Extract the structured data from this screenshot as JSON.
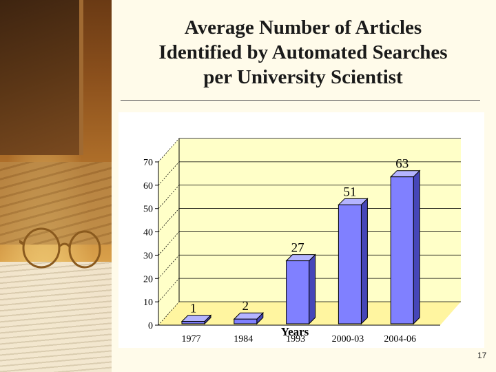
{
  "slide": {
    "title_lines": [
      "Average Number of Articles",
      "Identified by Automated Searches",
      "per University Scientist"
    ],
    "page_number": "17"
  },
  "colors": {
    "bar_front": "#8080ff",
    "bar_side": "#4646b8",
    "bar_top": "#b4b4ff",
    "plot_back": "#ffffc8",
    "plot_floor": "#fff5a0"
  },
  "chart_data": {
    "type": "bar",
    "categories": [
      "1977",
      "1984",
      "1993",
      "2000-03",
      "2004-06"
    ],
    "values": [
      1,
      2,
      27,
      51,
      63
    ],
    "data_labels": [
      "1",
      "2",
      "27",
      "51",
      "63"
    ],
    "xlabel": "Years",
    "ylabel": "",
    "ylim": [
      0,
      70
    ],
    "yticks": [
      0,
      10,
      20,
      30,
      40,
      50,
      60,
      70
    ],
    "grid": true,
    "legend": "none",
    "style": "3d"
  }
}
